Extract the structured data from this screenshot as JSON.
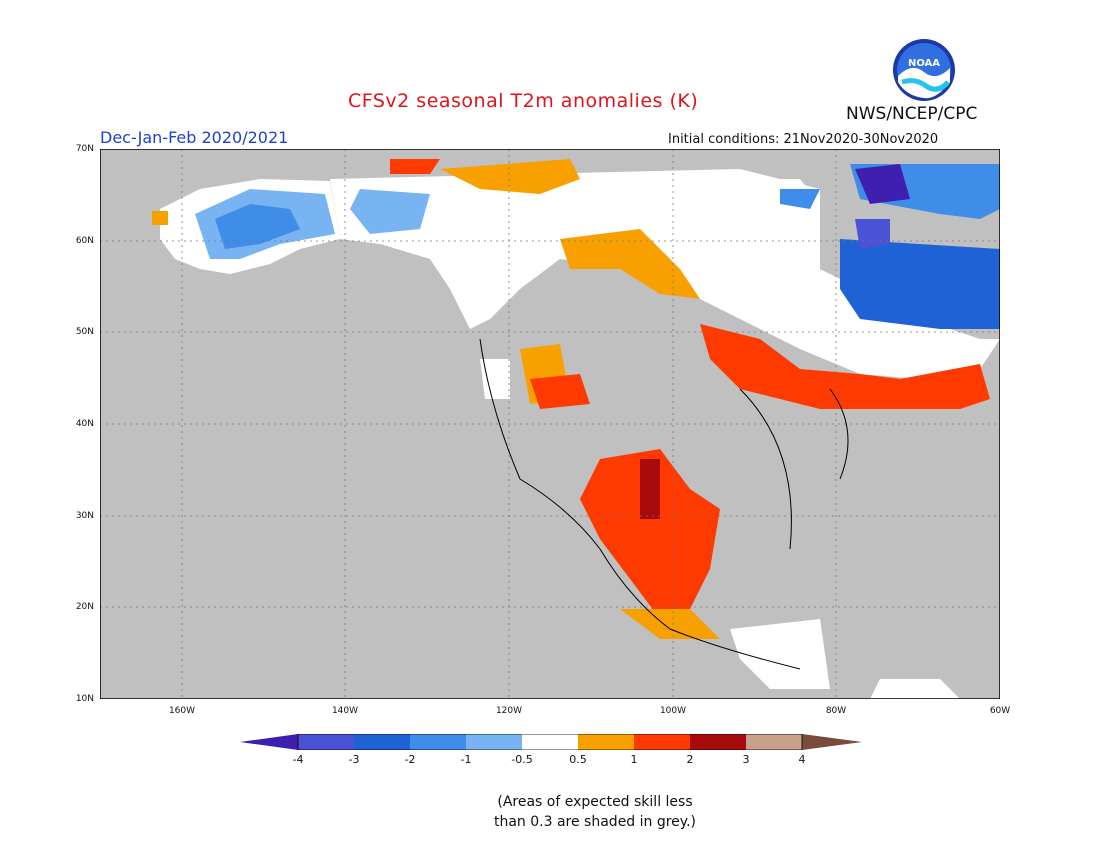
{
  "header": {
    "title": "CFSv2 seasonal T2m anomalies (K)",
    "season": "Dec-Jan-Feb 2020/2021",
    "initial_conditions": "Initial conditions: 21Nov2020-30Nov2020",
    "agency": "NWS/NCEP/CPC",
    "logo_text": "NOAA"
  },
  "map": {
    "lat_labels": [
      "70N",
      "60N",
      "50N",
      "40N",
      "30N",
      "20N",
      "10N"
    ],
    "lon_labels": [
      "160W",
      "140W",
      "120W",
      "100W",
      "80W",
      "60W"
    ],
    "lon_range": [
      -170,
      -60
    ],
    "lat_range": [
      10,
      70
    ]
  },
  "colorbar": {
    "labels": [
      "-4",
      "-3",
      "-2",
      "-1",
      "-0.5",
      "0.5",
      "1",
      "2",
      "3",
      "4"
    ],
    "colors": [
      "#3f1fb0",
      "#4a52d6",
      "#1f62d6",
      "#3f8de8",
      "#78b3f2",
      "#ffffff",
      "#f7a000",
      "#ff3a00",
      "#a80b0b",
      "#c9a08c",
      "#7a4a3a"
    ]
  },
  "note_lines": [
    "(Areas of expected skill less",
    "than 0.3 are shaded in grey.)"
  ],
  "colors": {
    "grey": "#c0c0c0",
    "land_outline": "#000000",
    "title": "#e0141b",
    "season": "#1f3fd1"
  }
}
